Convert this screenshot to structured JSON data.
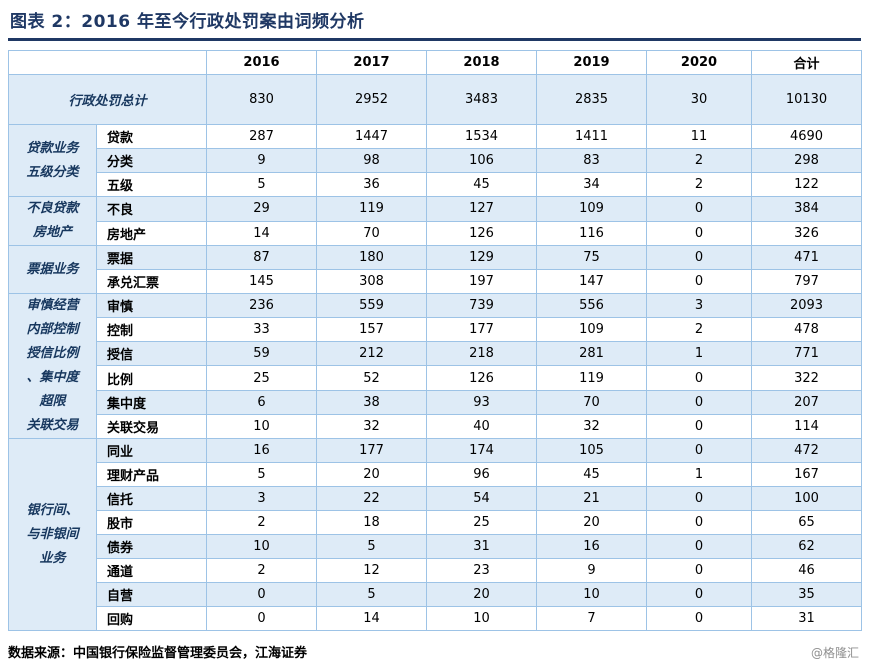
{
  "title": "图表 2：2016 年至今行政处罚案由词频分析",
  "source": "数据来源：中国银行保险监督管理委员会，江海证券",
  "watermark": "@格隆汇",
  "colors": {
    "title_navy": "#1F3864",
    "category_navy": "#17375E",
    "row_light_blue": "#DEEBF7",
    "grid_blue": "#9DC3E6"
  },
  "chart_data": {
    "type": "table",
    "title": "图表 2：2016 年至今行政处罚案由词频分析",
    "columns": [
      "2016",
      "2017",
      "2018",
      "2019",
      "2020",
      "合计"
    ],
    "total_row": {
      "label": "行政处罚总计",
      "values": [
        830,
        2952,
        3483,
        2835,
        30,
        10130
      ]
    },
    "groups": [
      {
        "category_lines": [
          "贷款业务",
          "五级分类"
        ],
        "rows": [
          {
            "keyword": "贷款",
            "values": [
              287,
              1447,
              1534,
              1411,
              11,
              4690
            ]
          },
          {
            "keyword": "分类",
            "values": [
              9,
              98,
              106,
              83,
              2,
              298
            ]
          },
          {
            "keyword": "五级",
            "values": [
              5,
              36,
              45,
              34,
              2,
              122
            ]
          }
        ]
      },
      {
        "category_lines": [
          "不良贷款",
          "房地产"
        ],
        "rows": [
          {
            "keyword": "不良",
            "values": [
              29,
              119,
              127,
              109,
              0,
              384
            ]
          },
          {
            "keyword": "房地产",
            "values": [
              14,
              70,
              126,
              116,
              0,
              326
            ]
          }
        ]
      },
      {
        "category_lines": [
          "票据业务"
        ],
        "rows": [
          {
            "keyword": "票据",
            "values": [
              87,
              180,
              129,
              75,
              0,
              471
            ]
          },
          {
            "keyword": "承兑汇票",
            "values": [
              145,
              308,
              197,
              147,
              0,
              797
            ]
          }
        ]
      },
      {
        "category_lines": [
          "审慎经营",
          "内部控制",
          "授信比例",
          "、集中度",
          "超限",
          "关联交易"
        ],
        "rows": [
          {
            "keyword": "审慎",
            "values": [
              236,
              559,
              739,
              556,
              3,
              2093
            ]
          },
          {
            "keyword": "控制",
            "values": [
              33,
              157,
              177,
              109,
              2,
              478
            ]
          },
          {
            "keyword": "授信",
            "values": [
              59,
              212,
              218,
              281,
              1,
              771
            ]
          },
          {
            "keyword": "比例",
            "values": [
              25,
              52,
              126,
              119,
              0,
              322
            ]
          },
          {
            "keyword": "集中度",
            "values": [
              6,
              38,
              93,
              70,
              0,
              207
            ]
          },
          {
            "keyword": "关联交易",
            "values": [
              10,
              32,
              40,
              32,
              0,
              114
            ]
          }
        ]
      },
      {
        "category_lines": [
          "银行间、",
          "与非银间",
          "业务"
        ],
        "rows": [
          {
            "keyword": "同业",
            "values": [
              16,
              177,
              174,
              105,
              0,
              472
            ]
          },
          {
            "keyword": "理财产品",
            "values": [
              5,
              20,
              96,
              45,
              1,
              167
            ]
          },
          {
            "keyword": "信托",
            "values": [
              3,
              22,
              54,
              21,
              0,
              100
            ]
          },
          {
            "keyword": "股市",
            "values": [
              2,
              18,
              25,
              20,
              0,
              65
            ]
          },
          {
            "keyword": "债券",
            "values": [
              10,
              5,
              31,
              16,
              0,
              62
            ]
          },
          {
            "keyword": "通道",
            "values": [
              2,
              12,
              23,
              9,
              0,
              46
            ]
          },
          {
            "keyword": "自营",
            "values": [
              0,
              5,
              20,
              10,
              0,
              35
            ]
          },
          {
            "keyword": "回购",
            "values": [
              0,
              14,
              10,
              7,
              0,
              31
            ]
          }
        ]
      }
    ]
  }
}
